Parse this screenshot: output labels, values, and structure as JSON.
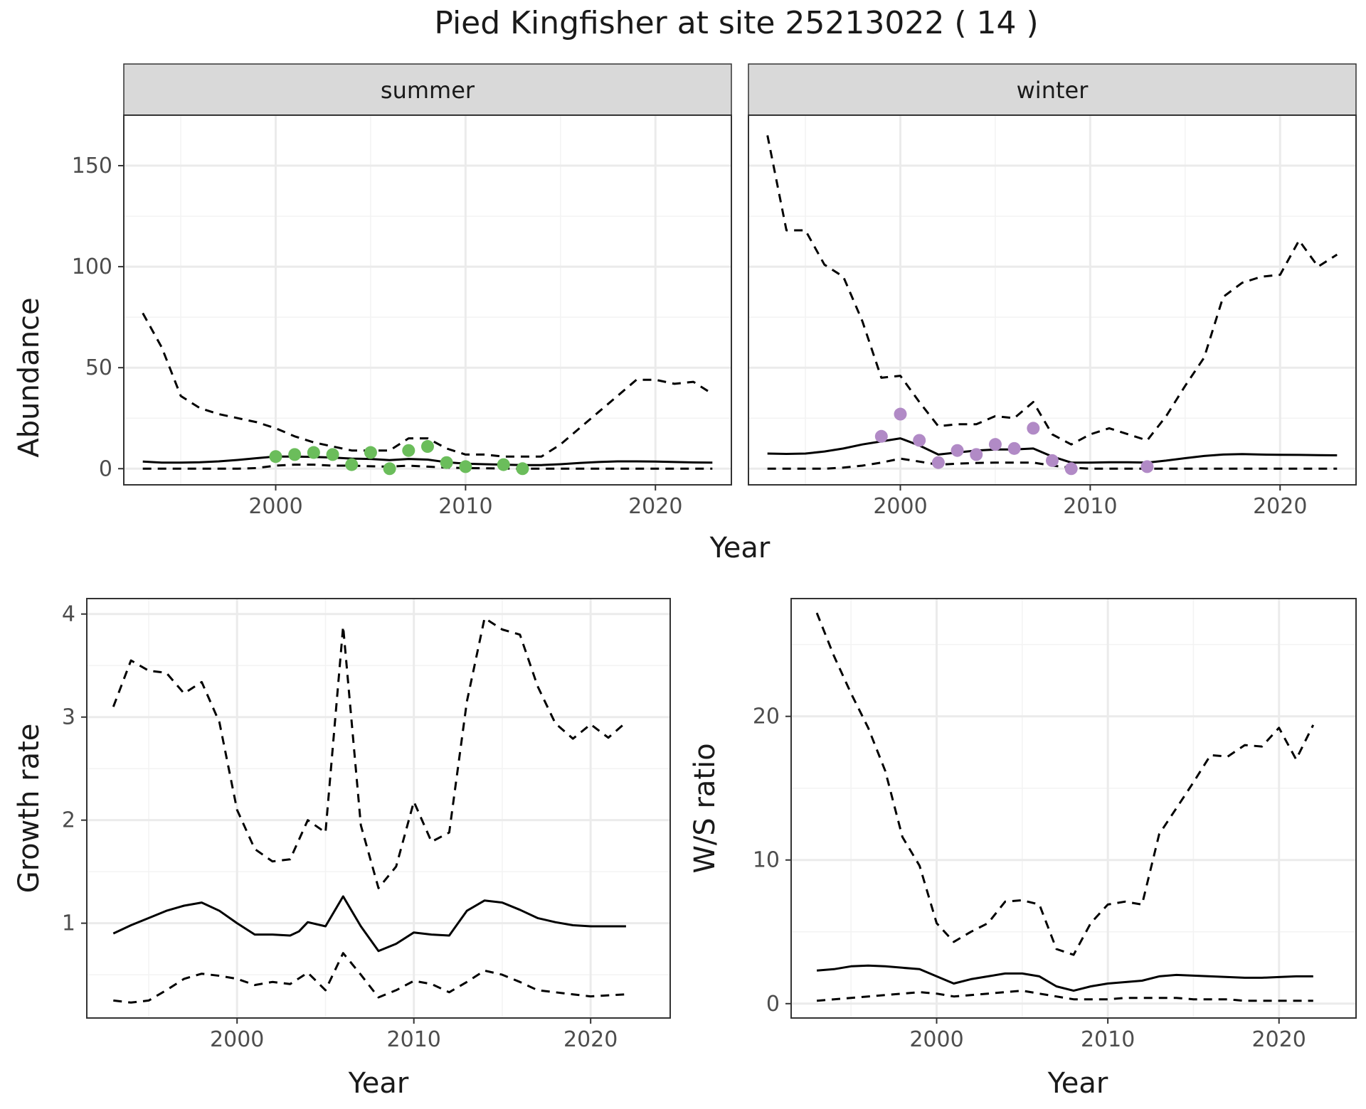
{
  "title": "Pied Kingfisher at site 25213022 ( 14 )",
  "colors": {
    "summer_points": "#6bbd5b",
    "winter_points": "#b18ac6",
    "line": "#000000",
    "strip_fill": "#d9d9d9",
    "grid": "#ebebeb"
  },
  "chart_data": [
    {
      "id": "abundance-summer",
      "type": "line",
      "facet": "summer",
      "xlabel": "",
      "ylabel": "Abundance",
      "xlim": [
        1992,
        2024
      ],
      "ylim": [
        -8,
        175
      ],
      "xticks": [
        2000,
        2010,
        2020
      ],
      "yticks": [
        0,
        50,
        100,
        150
      ],
      "grid": true,
      "series": [
        {
          "style": "solid",
          "x": [
            1993,
            1994,
            1995,
            1996,
            1997,
            1998,
            1999,
            2000,
            2001,
            2002,
            2003,
            2004,
            2005,
            2006,
            2007,
            2008,
            2009,
            2010,
            2011,
            2012,
            2013,
            2014,
            2015,
            2016,
            2017,
            2018,
            2019,
            2020,
            2021,
            2022,
            2023
          ],
          "y": [
            3.5,
            3,
            3,
            3.2,
            3.6,
            4.3,
            5.2,
            6,
            6,
            5.8,
            5.5,
            5,
            4.8,
            4.2,
            4.8,
            4.5,
            3.2,
            2.5,
            2.2,
            2,
            1.8,
            1.8,
            2.2,
            2.8,
            3.3,
            3.6,
            3.6,
            3.5,
            3.3,
            3.1,
            3
          ]
        },
        {
          "style": "dashed",
          "x": [
            1993,
            1994,
            1995,
            1996,
            1997,
            1998,
            1999,
            2000,
            2001,
            2002,
            2003,
            2004,
            2005,
            2006,
            2007,
            2008,
            2009,
            2010,
            2011,
            2012,
            2013,
            2014,
            2015,
            2016,
            2017,
            2018,
            2019,
            2020,
            2021,
            2022,
            2023
          ],
          "y": [
            77,
            60,
            36,
            30,
            27,
            25,
            23,
            20,
            16,
            13,
            11,
            9,
            9,
            9,
            15,
            15,
            10,
            7,
            7,
            6,
            6,
            6,
            12,
            20,
            28,
            36,
            44,
            44,
            42,
            43,
            37
          ]
        },
        {
          "style": "dashed",
          "x": [
            1993,
            1994,
            1995,
            1996,
            1997,
            1998,
            1999,
            2000,
            2001,
            2002,
            2003,
            2004,
            2005,
            2006,
            2007,
            2008,
            2009,
            2010,
            2011,
            2012,
            2013,
            2014,
            2015,
            2016,
            2017,
            2018,
            2019,
            2020,
            2021,
            2022,
            2023
          ],
          "y": [
            0,
            0,
            0,
            0,
            0,
            0,
            0.3,
            1.5,
            2,
            2,
            1.5,
            1.5,
            1.2,
            1,
            1.5,
            1,
            0.5,
            0.3,
            0.2,
            0.1,
            0,
            0,
            0,
            0,
            0,
            0,
            0,
            0,
            0,
            0,
            0
          ]
        },
        {
          "style": "points",
          "x": [
            2000,
            2001,
            2002,
            2003,
            2004,
            2005,
            2006,
            2007,
            2008,
            2009,
            2010,
            2012,
            2013
          ],
          "y": [
            6,
            7,
            8,
            7,
            2,
            8,
            0,
            9,
            11,
            3,
            1,
            2,
            0
          ]
        }
      ]
    },
    {
      "id": "abundance-winter",
      "type": "line",
      "facet": "winter",
      "xlabel": "",
      "ylabel": "",
      "xlim": [
        1992,
        2024
      ],
      "ylim": [
        -8,
        175
      ],
      "xticks": [
        2000,
        2010,
        2020
      ],
      "yticks": [
        0,
        50,
        100,
        150
      ],
      "grid": true,
      "series": [
        {
          "style": "solid",
          "x": [
            1993,
            1994,
            1995,
            1996,
            1997,
            1998,
            1999,
            2000,
            2001,
            2002,
            2003,
            2004,
            2005,
            2006,
            2007,
            2008,
            2009,
            2010,
            2011,
            2012,
            2013,
            2014,
            2015,
            2016,
            2017,
            2018,
            2019,
            2020,
            2021,
            2022,
            2023
          ],
          "y": [
            7.5,
            7.3,
            7.5,
            8.5,
            10,
            12,
            13.5,
            15,
            11.5,
            7,
            8,
            9,
            9.5,
            9.5,
            10,
            6,
            3,
            3,
            3.2,
            3.2,
            3,
            4,
            5.2,
            6.3,
            7,
            7.2,
            7,
            6.9,
            6.8,
            6.7,
            6.6
          ]
        },
        {
          "style": "dashed",
          "x": [
            1993,
            1994,
            1995,
            1996,
            1997,
            1998,
            1999,
            2000,
            2001,
            2002,
            2003,
            2004,
            2005,
            2006,
            2007,
            2008,
            2009,
            2010,
            2011,
            2012,
            2013,
            2014,
            2015,
            2016,
            2017,
            2018,
            2019,
            2020,
            2021,
            2022,
            2023
          ],
          "y": [
            165,
            118,
            118,
            101,
            95,
            73,
            45,
            46,
            33,
            21,
            22,
            22,
            26,
            25,
            33,
            17,
            12,
            17,
            20,
            17,
            14,
            26,
            41,
            55,
            85,
            92,
            95,
            96,
            113,
            100,
            106
          ]
        },
        {
          "style": "dashed",
          "x": [
            1993,
            1994,
            1995,
            1996,
            1997,
            1998,
            1999,
            2000,
            2001,
            2002,
            2003,
            2004,
            2005,
            2006,
            2007,
            2008,
            2009,
            2010,
            2011,
            2012,
            2013,
            2014,
            2015,
            2016,
            2017,
            2018,
            2019,
            2020,
            2021,
            2022,
            2023
          ],
          "y": [
            0,
            0,
            0,
            0,
            0.5,
            1.5,
            3,
            5,
            3.5,
            2,
            2.5,
            2.8,
            3,
            3,
            3,
            1.5,
            0.5,
            0,
            0,
            0,
            0,
            0,
            0,
            0,
            0,
            0,
            0,
            0,
            0,
            0,
            0
          ]
        },
        {
          "style": "points",
          "x": [
            1999,
            2000,
            2001,
            2002,
            2003,
            2004,
            2005,
            2006,
            2007,
            2008,
            2009,
            2013
          ],
          "y": [
            16,
            27,
            14,
            3,
            9,
            7,
            12,
            10,
            20,
            4,
            0,
            1
          ]
        }
      ]
    },
    {
      "id": "growth-rate",
      "type": "line",
      "xlabel": "Year",
      "ylabel": "Growth rate",
      "xlim": [
        1991.5,
        2024.5
      ],
      "ylim": [
        0.08,
        4.15
      ],
      "xticks": [
        2000,
        2010,
        2020
      ],
      "yticks": [
        1,
        2,
        3,
        4
      ],
      "grid": true,
      "series": [
        {
          "style": "solid",
          "x": [
            1993,
            1994,
            1995,
            1996,
            1997,
            1998,
            1999,
            2000,
            2001,
            2002,
            2003,
            2003.5,
            2004,
            2005,
            2006,
            2007,
            2008,
            2009,
            2010,
            2011,
            2012,
            2013,
            2014,
            2015,
            2016,
            2017,
            2018,
            2019,
            2020,
            2021,
            2022
          ],
          "y": [
            0.9,
            0.98,
            1.05,
            1.12,
            1.17,
            1.2,
            1.12,
            1,
            0.89,
            0.89,
            0.88,
            0.92,
            1.01,
            0.97,
            1.26,
            0.97,
            0.73,
            0.8,
            0.91,
            0.89,
            0.88,
            1.12,
            1.22,
            1.2,
            1.13,
            1.05,
            1.01,
            0.98,
            0.97,
            0.97,
            0.97
          ]
        },
        {
          "style": "dashed",
          "x": [
            1993,
            1994,
            1995,
            1996,
            1997,
            1998,
            1999,
            2000,
            2001,
            2002,
            2003,
            2004,
            2005,
            2006,
            2007,
            2008,
            2009,
            2010,
            2011,
            2012,
            2013,
            2014,
            2015,
            2016,
            2017,
            2018,
            2019,
            2020,
            2021,
            2022
          ],
          "y": [
            3.1,
            3.55,
            3.45,
            3.43,
            3.23,
            3.34,
            2.95,
            2.1,
            1.72,
            1.6,
            1.62,
            2.0,
            1.88,
            3.88,
            1.95,
            1.34,
            1.55,
            2.18,
            1.79,
            1.88,
            3.15,
            3.96,
            3.85,
            3.8,
            3.3,
            2.94,
            2.79,
            2.93,
            2.8,
            2.95
          ]
        },
        {
          "style": "dashed",
          "x": [
            1993,
            1994,
            1995,
            1996,
            1997,
            1998,
            1999,
            2000,
            2001,
            2002,
            2003,
            2004,
            2005,
            2006,
            2007,
            2008,
            2009,
            2010,
            2011,
            2012,
            2013,
            2014,
            2015,
            2016,
            2017,
            2018,
            2019,
            2020,
            2021,
            2022
          ],
          "y": [
            0.25,
            0.23,
            0.25,
            0.35,
            0.46,
            0.51,
            0.49,
            0.46,
            0.4,
            0.43,
            0.41,
            0.52,
            0.35,
            0.71,
            0.5,
            0.28,
            0.35,
            0.44,
            0.41,
            0.33,
            0.43,
            0.54,
            0.5,
            0.43,
            0.35,
            0.33,
            0.31,
            0.29,
            0.3,
            0.31
          ]
        }
      ]
    },
    {
      "id": "ws-ratio",
      "type": "line",
      "xlabel": "Year",
      "ylabel": "W/S ratio",
      "xlim": [
        1991.5,
        2024.5
      ],
      "ylim": [
        -1.0,
        28.2
      ],
      "xticks": [
        2000,
        2010,
        2020
      ],
      "yticks": [
        0,
        10,
        20
      ],
      "grid": true,
      "series": [
        {
          "style": "solid",
          "x": [
            1993,
            1994,
            1995,
            1996,
            1997,
            1998,
            1999,
            2000,
            2001,
            2002,
            2003,
            2004,
            2005,
            2006,
            2007,
            2008,
            2009,
            2010,
            2011,
            2012,
            2013,
            2014,
            2015,
            2016,
            2017,
            2018,
            2019,
            2020,
            2021,
            2022
          ],
          "y": [
            2.3,
            2.4,
            2.6,
            2.65,
            2.6,
            2.5,
            2.4,
            1.9,
            1.4,
            1.7,
            1.9,
            2.1,
            2.1,
            1.9,
            1.2,
            0.9,
            1.2,
            1.4,
            1.5,
            1.6,
            1.9,
            2.0,
            1.95,
            1.9,
            1.85,
            1.8,
            1.8,
            1.85,
            1.9,
            1.9
          ]
        },
        {
          "style": "dashed",
          "x": [
            1993,
            1994,
            1995,
            1996,
            1997,
            1998,
            1999,
            2000,
            2001,
            2002,
            2003,
            2004,
            2005,
            2006,
            2007,
            2008,
            2009,
            2010,
            2011,
            2012,
            2013,
            2014,
            2015,
            2016,
            2017,
            2018,
            2019,
            2020,
            2021,
            2022
          ],
          "y": [
            27.2,
            24.2,
            21.6,
            19.2,
            16.2,
            11.6,
            9.6,
            5.6,
            4.3,
            5.0,
            5.6,
            7.1,
            7.2,
            6.9,
            3.8,
            3.4,
            5.6,
            6.9,
            7.1,
            6.9,
            11.8,
            13.6,
            15.4,
            17.3,
            17.2,
            18,
            17.9,
            19.2,
            17.0,
            19.4
          ]
        },
        {
          "style": "dashed",
          "x": [
            1993,
            1994,
            1995,
            1996,
            1997,
            1998,
            1999,
            2000,
            2001,
            2002,
            2003,
            2004,
            2005,
            2006,
            2007,
            2008,
            2009,
            2010,
            2011,
            2012,
            2013,
            2014,
            2015,
            2016,
            2017,
            2018,
            2019,
            2020,
            2021,
            2022
          ],
          "y": [
            0.2,
            0.3,
            0.4,
            0.5,
            0.6,
            0.7,
            0.8,
            0.7,
            0.5,
            0.6,
            0.7,
            0.8,
            0.9,
            0.7,
            0.5,
            0.3,
            0.3,
            0.3,
            0.4,
            0.4,
            0.4,
            0.4,
            0.3,
            0.3,
            0.3,
            0.2,
            0.2,
            0.2,
            0.2,
            0.2
          ]
        }
      ]
    }
  ],
  "shared_xlabel_top": "Year"
}
